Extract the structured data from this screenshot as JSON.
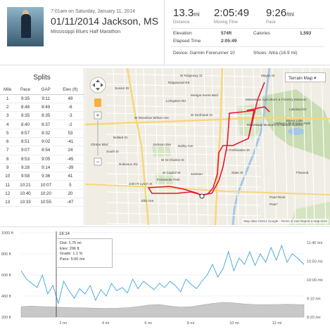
{
  "header": {
    "when": "7:01am on Saturday, January 11, 2014",
    "title": "01/11/2014 Jackson, MS",
    "subtitle": "Mississippi Blues Half Marathon"
  },
  "stats": {
    "distance_value": "13.3",
    "distance_unit": "mi",
    "distance_label": "Distance",
    "moving_time_value": "2:05:49",
    "moving_time_label": "Moving Time",
    "pace_value": "9:26",
    "pace_unit": "/mi",
    "pace_label": "Pace",
    "elevation_label": "Elevation",
    "elevation_value": "574ft",
    "calories_label": "Calories",
    "calories_value": "1,593",
    "elapsed_label": "Elapsed Time",
    "elapsed_value": "2:05:49",
    "device_text": "Device: Garmin Forerunner 10",
    "shoes_text": "Shoes: Altra (16.9 mi)"
  },
  "splits": {
    "title": "Splits",
    "headers": [
      "Mile",
      "Pace",
      "GAP",
      "Elev (ft)"
    ],
    "rows": [
      [
        "1",
        "9:35",
        "9:11",
        "49"
      ],
      [
        "2",
        "8:48",
        "8:49",
        "-6"
      ],
      [
        "3",
        "8:35",
        "8:35",
        "-3"
      ],
      [
        "4",
        "8:40",
        "8:37",
        "-2"
      ],
      [
        "5",
        "8:57",
        "8:32",
        "53"
      ],
      [
        "6",
        "8:51",
        "9:02",
        "-41"
      ],
      [
        "7",
        "9:07",
        "8:54",
        "24"
      ],
      [
        "8",
        "8:53",
        "9:05",
        "-45"
      ],
      [
        "9",
        "9:28",
        "9:14",
        "-39"
      ],
      [
        "10",
        "9:58",
        "9:36",
        "41"
      ],
      [
        "11",
        "10:21",
        "10:07",
        "5"
      ],
      [
        "12",
        "10:40",
        "10:20",
        "20"
      ],
      [
        "13",
        "10:33",
        "10:55",
        "-47"
      ]
    ]
  },
  "map": {
    "type_label": "Terrain Map",
    "copyright": "Map data ©2014 Google - Terms of Use  Report a map error",
    "labels": [
      {
        "t": "Ridgewood Rd",
        "k": "r1"
      },
      {
        "t": "W Ridgeway St",
        "k": "r2"
      },
      {
        "t": "Mayes St",
        "k": "r3"
      },
      {
        "t": "Mississippi Agriculture & Forestry Museum",
        "k": "r4"
      },
      {
        "t": "Mississippi Museum of Natural Science",
        "k": "r5"
      },
      {
        "t": "LeFleur's Bluff State Park",
        "k": "r6"
      },
      {
        "t": "Mayes Lake",
        "k": "r7"
      },
      {
        "t": "Jackson Zoo",
        "k": "r8"
      },
      {
        "t": "Poindexter Park",
        "k": "r9"
      },
      {
        "t": "Jackson",
        "k": "r10"
      },
      {
        "t": "Pearl River",
        "k": "r11"
      },
      {
        "t": "Flowood",
        "k": "r12"
      },
      {
        "t": "W Woodrow Wilson Ave",
        "k": "r13"
      },
      {
        "t": "W Northside Dr",
        "k": "r14"
      },
      {
        "t": "Bailey Ave",
        "k": "r15"
      },
      {
        "t": "E Fortification St",
        "k": "r16"
      },
      {
        "t": "John R Lynch St",
        "k": "r17"
      },
      {
        "t": "Robinson Rd",
        "k": "r18"
      },
      {
        "t": "W Capitol St",
        "k": "r19"
      },
      {
        "t": "South St",
        "k": "r20"
      },
      {
        "t": "Medgar Evers Blvd",
        "k": "r21"
      },
      {
        "t": "Livingston Rd",
        "k": "r22"
      },
      {
        "t": "W St Charles St",
        "k": "r23"
      },
      {
        "t": "Sunset Dr",
        "k": "r24"
      },
      {
        "t": "Bullard St",
        "k": "r25"
      },
      {
        "t": "Clinton Blvd",
        "k": "r26"
      },
      {
        "t": "Ellis Ave",
        "k": "r27"
      },
      {
        "t": "Lakeland Dr",
        "k": "r28"
      },
      {
        "t": "State St",
        "k": "r29"
      },
      {
        "t": "Pearl",
        "k": "r30"
      }
    ]
  },
  "elevation_chart": {
    "tooltip_time": "16:14",
    "tooltip_dist": "Dist: 1.75 mi",
    "tooltip_elev": "Elev: 296 ft",
    "tooltip_grade": "Grade: 1.1 %",
    "tooltip_pace": "Pace: 5:00 /mi",
    "left_ticks": [
      "1000 ft",
      "800 ft",
      "600 ft",
      "400 ft",
      "200 ft"
    ],
    "right_ticks": [
      "11:40 /mi",
      "10:50 /mi",
      "10:00 /mi",
      "9:10 /mi",
      "8:20 /mi"
    ],
    "x_ticks": [
      "2 mi",
      "4 mi",
      "6 mi",
      "8 mi",
      "10 mi",
      "12 mi"
    ]
  },
  "chart_data": {
    "type": "area",
    "x_unit": "mi",
    "xlim": [
      0,
      13.3
    ],
    "ylim_left": [
      200,
      1000
    ],
    "elevation_x": [
      0,
      0.5,
      1,
      1.5,
      2,
      2.5,
      3,
      3.5,
      4,
      4.5,
      5,
      5.5,
      6,
      6.5,
      7,
      7.5,
      8,
      8.5,
      9,
      9.5,
      10,
      10.5,
      11,
      11.5,
      12,
      12.5,
      13,
      13.3
    ],
    "elevation_y": [
      300,
      305,
      300,
      296,
      292,
      290,
      288,
      285,
      283,
      285,
      290,
      300,
      315,
      320,
      305,
      295,
      300,
      315,
      330,
      340,
      335,
      325,
      320,
      318,
      320,
      322,
      320,
      318
    ],
    "pace_x": [
      0,
      0.25,
      0.5,
      0.75,
      1,
      1.25,
      1.5,
      1.75,
      2,
      2.25,
      2.5,
      2.75,
      3,
      3.25,
      3.5,
      3.75,
      4,
      4.25,
      4.5,
      4.75,
      5,
      5.25,
      5.5,
      5.75,
      6,
      6.25,
      6.5,
      6.75,
      7,
      7.25,
      7.5,
      7.75,
      8,
      8.25,
      8.5,
      8.75,
      9,
      9.25,
      9.5,
      9.75,
      10,
      10.25,
      10.5,
      10.75,
      11,
      11.25,
      11.5,
      11.75,
      12,
      12.25,
      12.5,
      12.75,
      13,
      13.3
    ],
    "pace_y": [
      640,
      560,
      520,
      480,
      600,
      420,
      500,
      330,
      540,
      450,
      380,
      470,
      420,
      500,
      360,
      460,
      400,
      520,
      450,
      480,
      430,
      560,
      470,
      540,
      500,
      460,
      520,
      480,
      540,
      500,
      440,
      560,
      510,
      470,
      540,
      600,
      700,
      580,
      660,
      820,
      640,
      760,
      700,
      820,
      690,
      800,
      720,
      860,
      740,
      880,
      720,
      800,
      760,
      700
    ]
  }
}
